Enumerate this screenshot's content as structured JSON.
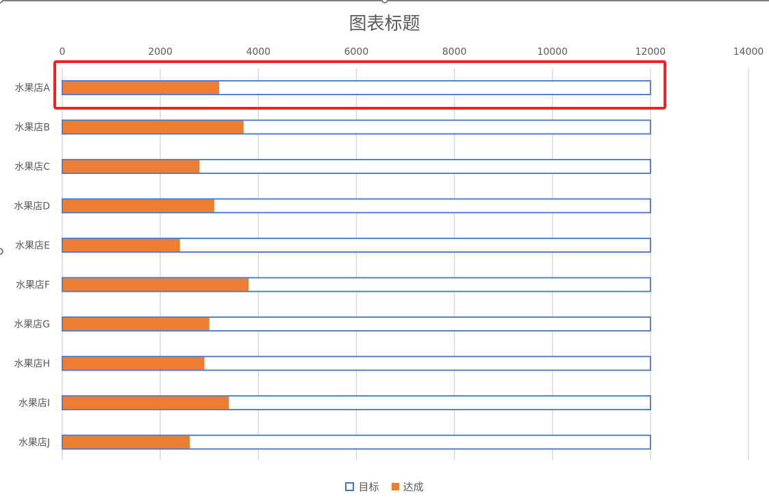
{
  "chart_data": {
    "type": "bar",
    "orientation": "horizontal",
    "title": "图表标题",
    "categories": [
      "水果店A",
      "水果店B",
      "水果店C",
      "水果店D",
      "水果店E",
      "水果店F",
      "水果店G",
      "水果店H",
      "水果店I",
      "水果店J"
    ],
    "series": [
      {
        "name": "目标",
        "style": "outline",
        "color": "#4472c4",
        "values": [
          12000,
          12000,
          12000,
          12000,
          12000,
          12000,
          12000,
          12000,
          12000,
          12000
        ]
      },
      {
        "name": "达成",
        "style": "fill",
        "color": "#ed7d31",
        "values": [
          3200,
          3700,
          2800,
          3100,
          2400,
          3800,
          3000,
          2900,
          3400,
          2600
        ]
      }
    ],
    "xlim": [
      0,
      14000
    ],
    "xticks": [
      0,
      2000,
      4000,
      6000,
      8000,
      10000,
      12000,
      14000
    ],
    "xaxis_position": "top",
    "grid": true,
    "legend_position": "bottom",
    "highlighted_category": "水果店A",
    "highlight_color": "#ee2222"
  }
}
